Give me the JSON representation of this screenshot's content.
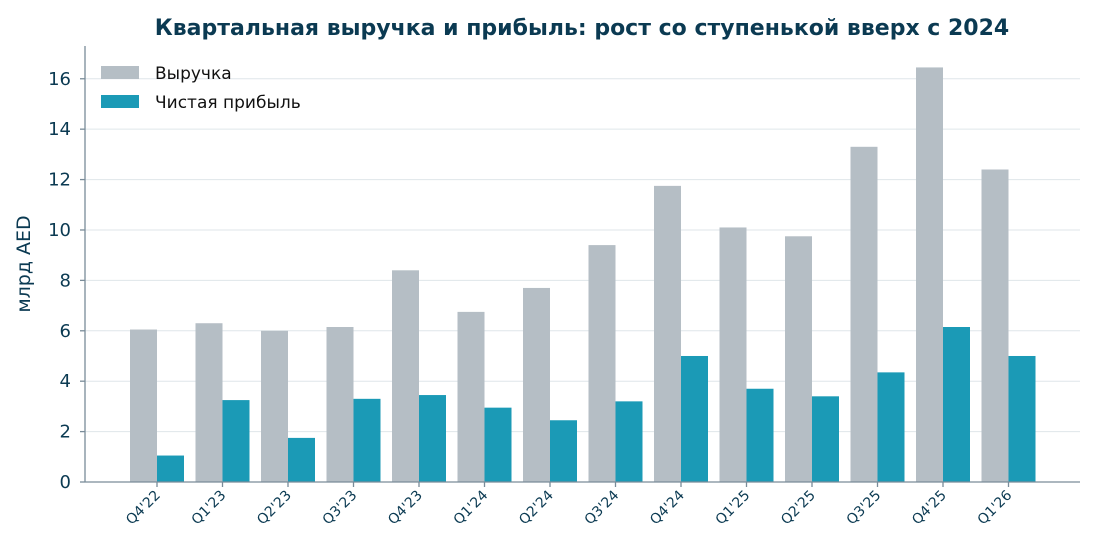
{
  "chart_data": {
    "type": "bar",
    "title": "Квартальная выручка и прибыль: рост со ступенькой вверх с 2024",
    "xlabel": "",
    "ylabel": "млрд AED",
    "ylim": [
      0,
      17.3
    ],
    "yticks": [
      0,
      2,
      4,
      6,
      8,
      10,
      12,
      14,
      16
    ],
    "grid": "horizontal",
    "legend_position": "top-left",
    "categories": [
      "Q4'22",
      "Q1'23",
      "Q2'23",
      "Q3'23",
      "Q4'23",
      "Q1'24",
      "Q2'24",
      "Q3'24",
      "Q4'24",
      "Q1'25",
      "Q2'25",
      "Q3'25",
      "Q4'25",
      "Q1'26"
    ],
    "series": [
      {
        "name": "Выручка",
        "color": "#b5bec5",
        "values": [
          6.05,
          6.3,
          6.0,
          6.15,
          8.4,
          6.75,
          7.7,
          9.4,
          11.75,
          10.1,
          9.75,
          13.3,
          16.45,
          12.4
        ]
      },
      {
        "name": "Чистая прибыль",
        "color": "#1b9ab6",
        "values": [
          1.05,
          3.25,
          1.75,
          3.3,
          3.45,
          2.95,
          2.45,
          3.2,
          5.0,
          3.7,
          3.4,
          4.35,
          6.15,
          5.0
        ]
      }
    ]
  }
}
